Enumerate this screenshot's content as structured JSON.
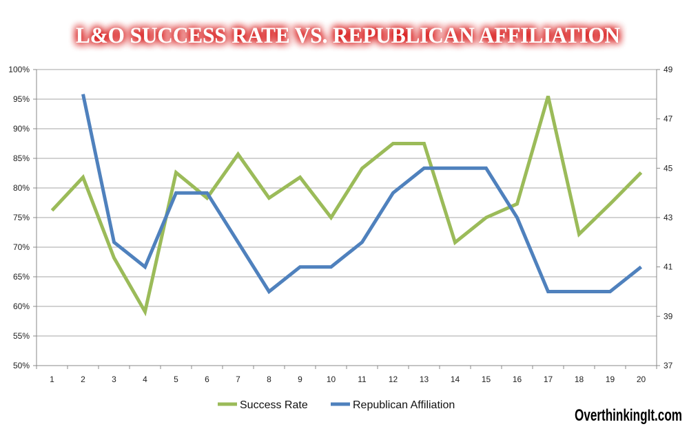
{
  "chart_data": {
    "type": "line",
    "title": "L&O SUCCESS RATE VS. REPUBLICAN AFFILIATION",
    "x": [
      1,
      2,
      3,
      4,
      5,
      6,
      7,
      8,
      9,
      10,
      11,
      12,
      13,
      14,
      15,
      16,
      17,
      18,
      19,
      20
    ],
    "x_tick_labels": [
      "1",
      "2",
      "3",
      "4",
      "5",
      "6",
      "7",
      "8",
      "9",
      "10",
      "11",
      "12",
      "13",
      "14",
      "15",
      "16",
      "17",
      "18",
      "19",
      "20"
    ],
    "y_left": {
      "min": 0.5,
      "max": 1.0,
      "tick_labels": [
        "50%",
        "55%",
        "60%",
        "65%",
        "70%",
        "75%",
        "80%",
        "85%",
        "90%",
        "95%",
        "100%"
      ]
    },
    "y_right": {
      "min": 37,
      "max": 49,
      "tick_labels": [
        "37",
        "39",
        "41",
        "43",
        "45",
        "47",
        "49"
      ]
    },
    "grid": true,
    "legend_position": "bottom",
    "series": [
      {
        "name": "Success Rate",
        "axis": "left",
        "color": "#9bbb59",
        "values": [
          0.762,
          0.818,
          0.682,
          0.591,
          0.826,
          0.783,
          0.857,
          0.783,
          0.818,
          0.75,
          0.833,
          0.875,
          0.875,
          0.708,
          0.75,
          0.773,
          0.955,
          0.722,
          0.773,
          0.826
        ]
      },
      {
        "name": "Republican Affiliation",
        "axis": "right",
        "color": "#4f81bd",
        "values": [
          null,
          48,
          42,
          41,
          44,
          44,
          42,
          40,
          41,
          41,
          42,
          44,
          45,
          45,
          45,
          43,
          40,
          40,
          40,
          41
        ]
      }
    ]
  },
  "branding": {
    "watermark": "OverthinkingIt.com"
  },
  "colors": {
    "title_glow": "#d40000",
    "title_text": "#ffffff",
    "grid": "#a6a6a6"
  }
}
